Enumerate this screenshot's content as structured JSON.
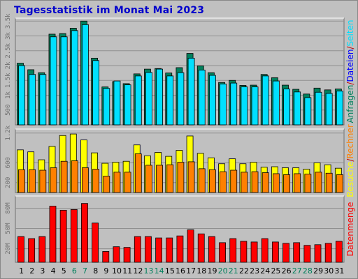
{
  "title": "Tagesstatistik im Monat Mai 2023",
  "colors": {
    "background": "#c0c0c0",
    "plot_bg": "#c0c0c0",
    "title": "#0000cc",
    "hits": "#00805c",
    "files": "#00e0ff",
    "pages": "#0000ff",
    "visits": "#ffff00",
    "sites": "#ff8000",
    "kbytes": "#ff0000",
    "weekend_day": "#00805c",
    "weekday": "#000000"
  },
  "chart_data": [
    {
      "type": "bar",
      "panel": "top",
      "ylim": [
        0,
        3600
      ],
      "yticks": [
        {
          "label": "500",
          "value": 500
        },
        {
          "label": "1k",
          "value": 1000
        },
        {
          "label": "1.5k",
          "value": 1500
        },
        {
          "label": "2k",
          "value": 2000
        },
        {
          "label": "2.5k",
          "value": 2500
        },
        {
          "label": "3k",
          "value": 3000
        },
        {
          "label": "3.5k",
          "value": 3500
        }
      ],
      "side_labels": [
        {
          "text": "Anfragen",
          "color": "#00805c"
        },
        {
          "text": "/",
          "color": "#c00000"
        },
        {
          "text": "Dateien",
          "color": "#0000ff"
        },
        {
          "text": "/",
          "color": "#c00000"
        },
        {
          "text": "Seiten",
          "color": "#00e0ff"
        }
      ],
      "series": [
        {
          "name": "Anfragen",
          "color": "#00805c",
          "values": [
            2080,
            1860,
            1760,
            3060,
            3080,
            3260,
            3500,
            2250,
            1280,
            1460,
            1390,
            1720,
            1880,
            1900,
            1750,
            1930,
            2410,
            1990,
            1760,
            1430,
            1500,
            1330,
            1340,
            1700,
            1590,
            1340,
            1200,
            1040,
            1240,
            1180,
            1210
          ]
        },
        {
          "name": "Seiten",
          "color": "#00e0ff",
          "values": [
            2000,
            1700,
            1700,
            2970,
            2970,
            3180,
            3380,
            2170,
            1230,
            1480,
            1350,
            1650,
            1770,
            1880,
            1650,
            1760,
            2250,
            1850,
            1670,
            1380,
            1410,
            1280,
            1280,
            1650,
            1480,
            1210,
            1110,
            920,
            1100,
            1060,
            1140
          ]
        }
      ]
    },
    {
      "type": "bar",
      "panel": "middle",
      "ylim": [
        0,
        1280
      ],
      "yticks": [
        {
          "label": "200",
          "value": 200
        },
        {
          "label": "600",
          "value": 600
        },
        {
          "label": "1.2k",
          "value": 1200
        }
      ],
      "side_labels": [
        {
          "text": "Besuche",
          "color": "#ffff00"
        },
        {
          "text": "/",
          "color": "#c00000"
        },
        {
          "text": "Rechner",
          "color": "#ff8000"
        }
      ],
      "series": [
        {
          "name": "Besuche",
          "color": "#ffff00",
          "values": [
            860,
            820,
            660,
            930,
            1150,
            1180,
            1060,
            800,
            590,
            610,
            630,
            960,
            740,
            810,
            730,
            850,
            1140,
            790,
            700,
            580,
            680,
            580,
            610,
            510,
            520,
            500,
            500,
            470,
            600,
            560,
            490
          ]
        },
        {
          "name": "Rechner",
          "color": "#ff8000",
          "values": [
            460,
            460,
            450,
            500,
            630,
            640,
            500,
            470,
            330,
            410,
            410,
            780,
            550,
            550,
            560,
            610,
            620,
            480,
            460,
            420,
            450,
            410,
            420,
            400,
            380,
            360,
            380,
            370,
            410,
            390,
            360
          ]
        }
      ]
    },
    {
      "type": "bar",
      "panel": "bottom",
      "ylim": [
        0,
        98
      ],
      "yticks": [
        {
          "label": "20M",
          "value": 20
        },
        {
          "label": "50M",
          "value": 50
        },
        {
          "label": "80M",
          "value": 80
        }
      ],
      "side_labels": [
        {
          "text": "Datenmenge",
          "color": "#ff0000"
        }
      ],
      "series": [
        {
          "name": "Datenmenge",
          "color": "#ff0000",
          "values": [
            38,
            35,
            38,
            83,
            77,
            78,
            87,
            58,
            16,
            23,
            22,
            38,
            38,
            36,
            36,
            39,
            48,
            42,
            38,
            29,
            35,
            31,
            30,
            35,
            30,
            28,
            29,
            25,
            26,
            28,
            31
          ]
        }
      ]
    }
  ],
  "days": [
    "1",
    "2",
    "3",
    "4",
    "5",
    "6",
    "7",
    "8",
    "9",
    "10",
    "11",
    "12",
    "13",
    "14",
    "15",
    "16",
    "17",
    "18",
    "19",
    "20",
    "21",
    "22",
    "23",
    "24",
    "25",
    "26",
    "27",
    "28",
    "29",
    "30",
    "31"
  ],
  "weekend_days": [
    6,
    7,
    13,
    14,
    20,
    21,
    27,
    28
  ]
}
